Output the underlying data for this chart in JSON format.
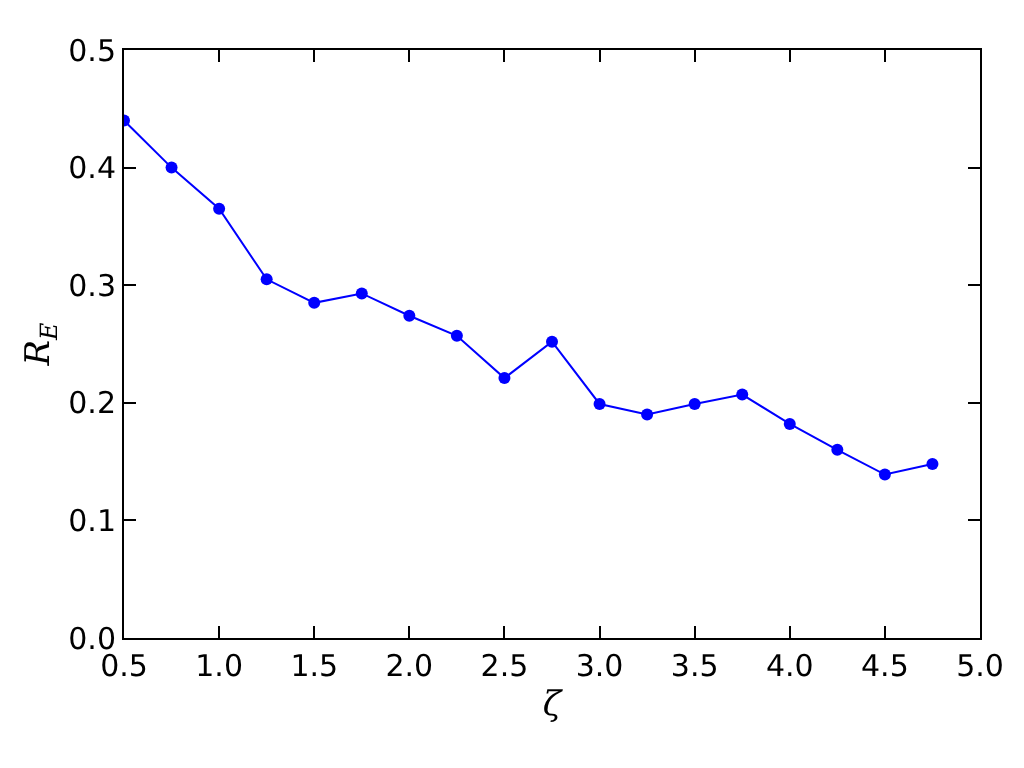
{
  "chart_data": {
    "type": "line",
    "xlabel": "ζ",
    "ylabel": "R$_{E}$",
    "x": [
      0.5,
      0.75,
      1.0,
      1.25,
      1.5,
      1.75,
      2.0,
      2.25,
      2.5,
      2.75,
      3.0,
      3.25,
      3.5,
      3.75,
      4.0,
      4.25,
      4.5,
      4.75
    ],
    "series": [
      {
        "color": "#0000ff",
        "values": [
          0.44,
          0.4,
          0.365,
          0.305,
          0.285,
          0.293,
          0.274,
          0.257,
          0.221,
          0.252,
          0.199,
          0.19,
          0.199,
          0.207,
          0.182,
          0.16,
          0.139,
          0.148
        ]
      }
    ],
    "xlim": [
      0.5,
      5.0
    ],
    "ylim": [
      0.0,
      0.5
    ],
    "xticks": [
      {
        "value": 0.5,
        "label": "0.5"
      },
      {
        "value": 1.0,
        "label": "1.0"
      },
      {
        "value": 1.5,
        "label": "1.5"
      },
      {
        "value": 2.0,
        "label": "2.0"
      },
      {
        "value": 2.5,
        "label": "2.5"
      },
      {
        "value": 3.0,
        "label": "3.0"
      },
      {
        "value": 3.5,
        "label": "3.5"
      },
      {
        "value": 4.0,
        "label": "4.0"
      },
      {
        "value": 4.5,
        "label": "4.5"
      },
      {
        "value": 5.0,
        "label": "5.0"
      }
    ],
    "yticks": [
      {
        "value": 0.0,
        "label": "0.0"
      },
      {
        "value": 0.1,
        "label": "0.1"
      },
      {
        "value": 0.2,
        "label": "0.2"
      },
      {
        "value": 0.3,
        "label": "0.3"
      },
      {
        "value": 0.4,
        "label": "0.4"
      },
      {
        "value": 0.5,
        "label": "0.5"
      }
    ],
    "grid": false,
    "marker": "circle",
    "line_style": "solid"
  }
}
